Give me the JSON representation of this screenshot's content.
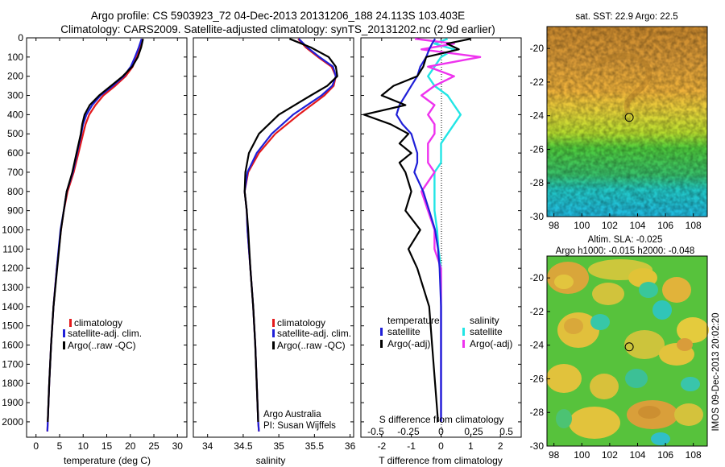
{
  "header": {
    "line1": "Argo profile: CS 5903923_72 04-Dec-2013 20131206_188 24.113S 103.403E",
    "line2": "Climatology: CARS2009. Satellite-adjusted climatology: synTS_20131202.nc (2.9d earlier)"
  },
  "credit": {
    "institution": "Argo Australia",
    "pi": "PI: Susan Wijffels",
    "side_stamp": "IMOS 09-Dec-2013 20:02:20"
  },
  "colors": {
    "climatology": "#e41a1c",
    "satellite_adj": "#1f1fd8",
    "argo": "#000000",
    "satellite_diff_s": "#22e5e5",
    "argo_diff_s": "#ee33ee",
    "marker": "#000000"
  },
  "chart_data": [
    {
      "type": "line",
      "xlabel": "temperature (deg C)",
      "ylabel": "",
      "xlim": [
        -2,
        32
      ],
      "ylim": [
        2080,
        0
      ],
      "xticks": [
        0,
        5,
        10,
        15,
        20,
        25,
        30
      ],
      "yticks": [
        0,
        100,
        200,
        300,
        400,
        500,
        600,
        700,
        800,
        900,
        1000,
        1100,
        1200,
        1300,
        1400,
        1500,
        1600,
        1700,
        1800,
        1900,
        2000
      ],
      "legend": [
        "climatology",
        "satellite-adj. clim.",
        "Argo(..raw -QC)"
      ],
      "legend_position": "lower-center",
      "depth": [
        5,
        50,
        100,
        150,
        200,
        250,
        300,
        350,
        400,
        450,
        500,
        600,
        700,
        800,
        900,
        1000,
        1200,
        1400,
        1600,
        1800,
        2000,
        2050
      ],
      "series": [
        {
          "name": "climatology",
          "values": [
            22.6,
            22.0,
            21.3,
            20.5,
            19.0,
            16.8,
            14.3,
            12.6,
            11.3,
            10.5,
            10.0,
            9.0,
            8.0,
            6.7,
            5.9,
            5.3,
            4.4,
            3.7,
            3.2,
            2.8,
            2.5,
            2.4
          ]
        },
        {
          "name": "satellite-adj. clim.",
          "values": [
            22.4,
            21.8,
            21.0,
            20.1,
            18.6,
            16.3,
            13.7,
            11.9,
            10.7,
            10.0,
            9.6,
            8.7,
            7.8,
            6.5,
            5.9,
            5.2,
            4.4,
            3.7,
            3.2,
            2.8,
            2.5,
            2.4
          ]
        },
        {
          "name": "Argo(..raw -QC)",
          "values": [
            22.7,
            22.3,
            21.6,
            20.4,
            18.4,
            15.9,
            13.4,
            11.4,
            10.3,
            9.8,
            9.5,
            8.6,
            7.7,
            6.5,
            5.9,
            5.3,
            4.5,
            3.7,
            3.2,
            2.8,
            2.5
          ]
        }
      ]
    },
    {
      "type": "line",
      "xlabel": "salinity",
      "ylabel": "",
      "xlim": [
        33.8,
        36.05
      ],
      "ylim": [
        2080,
        0
      ],
      "xticks": [
        34,
        34.5,
        35,
        35.5,
        36
      ],
      "legend": [
        "climatology",
        "satellite-adj. clim.",
        "Argo(..raw -QC)"
      ],
      "legend_position": "lower-center",
      "depth": [
        5,
        50,
        100,
        150,
        200,
        250,
        300,
        400,
        500,
        600,
        700,
        800,
        900,
        1000,
        1200,
        1400,
        1600,
        1800,
        2000,
        2050
      ],
      "series": [
        {
          "name": "climatology",
          "values": [
            35.27,
            35.38,
            35.55,
            35.74,
            35.8,
            35.77,
            35.64,
            35.28,
            34.95,
            34.72,
            34.57,
            34.52,
            34.55,
            34.56,
            34.6,
            34.64,
            34.67,
            34.69,
            34.71,
            34.72
          ]
        },
        {
          "name": "satellite-adj. clim.",
          "values": [
            35.28,
            35.4,
            35.57,
            35.76,
            35.8,
            35.75,
            35.6,
            35.2,
            34.9,
            34.69,
            34.56,
            34.52,
            34.55,
            34.56,
            34.6,
            34.64,
            34.67,
            34.69,
            34.71,
            34.72
          ]
        },
        {
          "name": "Argo(..raw -QC)",
          "values": [
            35.15,
            35.45,
            35.7,
            35.8,
            35.82,
            35.68,
            35.45,
            35.0,
            34.72,
            34.58,
            34.53,
            34.52,
            34.55,
            34.57,
            34.6,
            34.64,
            34.67,
            34.69,
            34.71
          ]
        }
      ]
    },
    {
      "type": "line",
      "xlabel": "T difference from climatology",
      "top_label": "S difference from climatology",
      "xlim": [
        -2.7,
        2.7
      ],
      "ylim": [
        2080,
        0
      ],
      "xticks_T": [
        -2,
        -1,
        0,
        1,
        2
      ],
      "xticks_S_labels": [
        "-0.5",
        "-0.25",
        "0",
        "0.25",
        "0.5"
      ],
      "legend_left_title": "temperature",
      "legend_right_title": "salinity",
      "legend": [
        "satellite",
        "Argo(-adj)",
        "satellite",
        "Argo(-adj)"
      ],
      "legend_position": "lower-center",
      "depth": [
        5,
        30,
        60,
        100,
        150,
        200,
        250,
        300,
        350,
        400,
        450,
        500,
        550,
        600,
        650,
        700,
        800,
        900,
        1000,
        1100,
        1200,
        1400,
        1600,
        1800,
        2000
      ],
      "series": [
        {
          "name": "T satellite",
          "values": [
            -0.2,
            -0.3,
            -0.4,
            -0.5,
            -0.7,
            -0.8,
            -1.0,
            -1.2,
            -1.4,
            -1.5,
            -1.3,
            -1.0,
            -0.9,
            -0.8,
            -0.8,
            -0.9,
            -0.6,
            -0.4,
            -0.2,
            -0.1,
            -0.05,
            0.0,
            0.0,
            0.0,
            0.0
          ]
        },
        {
          "name": "T Argo(-adj)",
          "values": [
            1.0,
            0.2,
            0.6,
            -0.5,
            -0.6,
            -0.8,
            -1.6,
            -2.0,
            -1.2,
            -2.6,
            -1.7,
            -1.1,
            -1.4,
            -1.0,
            -1.4,
            -1.2,
            -1.0,
            -1.2,
            -0.7,
            -1.1,
            -0.8,
            -0.4,
            -0.3,
            -0.2,
            -0.1
          ]
        },
        {
          "name": "S satellite",
          "values": [
            0.05,
            -0.05,
            0.1,
            0.0,
            -0.05,
            -0.1,
            -0.05,
            0.05,
            0.1,
            0.15,
            0.1,
            0.05,
            0.0,
            0.0,
            0.0,
            -0.05,
            -0.05,
            -0.05,
            -0.03,
            -0.02,
            0.0,
            0.0,
            0.0,
            0.0,
            0.0
          ]
        },
        {
          "name": "S Argo(-adj)",
          "values": [
            -0.2,
            0.1,
            -0.15,
            0.3,
            -0.1,
            0.1,
            -0.05,
            -0.15,
            -0.05,
            -0.1,
            -0.05,
            -0.05,
            -0.1,
            -0.1,
            -0.1,
            -0.05,
            -0.15,
            -0.1,
            -0.05,
            -0.05,
            0.0,
            0.0,
            0.0,
            0.0,
            0.0
          ]
        }
      ]
    },
    {
      "type": "heatmap",
      "title": "sat. SST: 22.9  Argo: 22.5",
      "xlim": [
        97.5,
        109
      ],
      "ylim": [
        -30,
        -18.7
      ],
      "xticks": [
        98,
        100,
        102,
        104,
        106,
        108
      ],
      "yticks": [
        -30,
        -28,
        -26,
        -24,
        -22,
        -20
      ],
      "marker": {
        "lon": 103.4,
        "lat": -24.1
      }
    },
    {
      "type": "heatmap",
      "title_line1": "Altim. SLA: -0.025",
      "title_line2": "Argo h1000: -0.015 h2000: -0.048",
      "xlim": [
        97.5,
        109
      ],
      "ylim": [
        -30,
        -18.7
      ],
      "xticks": [
        98,
        100,
        102,
        104,
        106,
        108
      ],
      "yticks": [
        -30,
        -28,
        -26,
        -24,
        -22,
        -20
      ],
      "marker": {
        "lon": 103.4,
        "lat": -24.1
      }
    }
  ]
}
